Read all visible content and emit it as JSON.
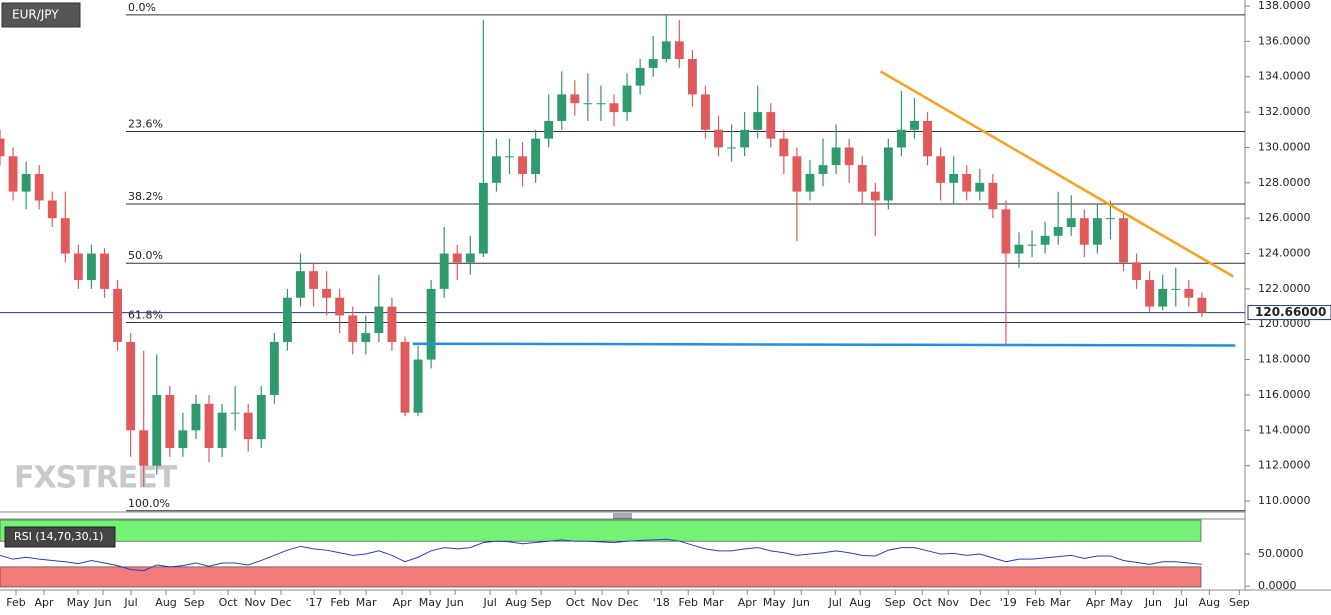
{
  "chart_data": {
    "type": "candlestick",
    "title": "EUR/JPY",
    "watermark": "FXSTREET",
    "x": [
      0,
      2,
      4,
      6,
      8,
      10,
      12,
      14,
      16,
      18,
      20,
      22,
      24,
      26,
      28,
      30,
      32,
      34,
      36,
      38,
      40,
      42,
      44,
      46,
      48,
      50,
      52,
      54,
      56,
      58,
      60,
      62,
      64,
      66,
      68,
      70,
      72,
      74,
      76,
      78,
      80,
      82,
      84,
      86,
      88,
      90,
      92,
      94,
      96,
      98,
      100,
      102,
      104,
      106,
      108,
      110,
      112,
      114,
      116,
      118,
      120,
      122,
      124,
      126,
      128,
      130,
      132,
      134,
      136,
      138,
      140,
      142,
      144,
      146,
      148,
      150,
      152,
      154,
      156,
      158,
      160,
      162,
      164,
      166,
      168,
      170,
      172,
      174,
      176,
      178,
      180,
      182,
      184
    ],
    "open": [
      130.5,
      129.5,
      127.5,
      128.5,
      127,
      126,
      124,
      122.5,
      124,
      122,
      119,
      114,
      112,
      116,
      113,
      114,
      115.5,
      113,
      115,
      115,
      113.5,
      116,
      119,
      121.5,
      123,
      122,
      121.5,
      120.5,
      119,
      119.5,
      121,
      119,
      115,
      118,
      122,
      124,
      123.5,
      124,
      128,
      129.5,
      129.5,
      128.5,
      130.5,
      131.5,
      133,
      132.5,
      132.5,
      132.5,
      132,
      133.5,
      134.5,
      135,
      136,
      135,
      133,
      131,
      130,
      130,
      131,
      132,
      130.5,
      129.5,
      127.5,
      128.5,
      129,
      130,
      129,
      127.5,
      127,
      130,
      131,
      131.5,
      129.5,
      128,
      128.5,
      127.5,
      128,
      126.5,
      124,
      124.5,
      124.5,
      125,
      125.5,
      126,
      124.5,
      126,
      126,
      123.5,
      122.5,
      121,
      122,
      122,
      121.5
    ],
    "high": [
      131,
      130,
      129.2,
      129,
      127.5,
      127.5,
      124.5,
      124.5,
      124.3,
      122.5,
      119.5,
      118.5,
      118.3,
      116.5,
      115,
      116,
      116,
      115.5,
      116.5,
      115.5,
      116.5,
      119.5,
      122,
      124,
      123.5,
      123,
      122,
      121,
      120.5,
      122.8,
      121.5,
      119.3,
      118.8,
      122.5,
      125.5,
      124.5,
      125,
      137.2,
      130.5,
      130.5,
      130.3,
      131,
      133,
      134.3,
      133.8,
      134.2,
      133.5,
      133,
      134.2,
      135,
      136.3,
      137.5,
      137.2,
      135.5,
      133.5,
      131.8,
      131.3,
      132,
      133.5,
      132.5,
      131,
      130,
      129.3,
      130.5,
      131.3,
      130.5,
      129.5,
      128,
      130.5,
      133.2,
      132.8,
      132,
      130,
      129.5,
      129,
      128.8,
      128.5,
      127,
      125.2,
      125.3,
      125.8,
      127.5,
      127.3,
      126.5,
      126.8,
      127,
      126.3,
      124,
      123,
      122.8,
      123.2,
      122.5,
      121.8
    ],
    "low": [
      129,
      127,
      126.5,
      126.5,
      125.5,
      123.5,
      122,
      122,
      121.5,
      118.5,
      112.5,
      110.8,
      111.5,
      112.5,
      112.5,
      113.5,
      112.2,
      112.5,
      114,
      112.8,
      113,
      115.5,
      118.5,
      121,
      121,
      120.5,
      119.5,
      118.3,
      118.3,
      119,
      118.5,
      114.8,
      114.8,
      117.5,
      121.5,
      122.5,
      122.8,
      123.8,
      127.5,
      128.5,
      127.8,
      128,
      130,
      131,
      131.8,
      131.5,
      131.5,
      131.2,
      131.5,
      133,
      134,
      134.8,
      134.5,
      132.3,
      130.5,
      129.5,
      129.2,
      129.5,
      130.5,
      130,
      128.5,
      124.7,
      127,
      127.8,
      128.5,
      128,
      126.8,
      125,
      126.5,
      129.5,
      130.5,
      129,
      127,
      126.8,
      127,
      127,
      126,
      118.9,
      123.2,
      123.8,
      124,
      124.5,
      125,
      123.8,
      124,
      124.8,
      123,
      122,
      120.7,
      120.8,
      121,
      121,
      120.4
    ],
    "close": [
      129.5,
      127.5,
      128.5,
      127,
      126,
      124,
      122.5,
      124,
      122,
      119,
      114,
      112,
      116,
      113,
      114,
      115.5,
      113,
      115,
      115,
      113.5,
      116,
      119,
      121.5,
      123,
      122,
      121.5,
      120.5,
      119,
      119.5,
      121,
      119,
      115,
      118,
      122,
      124,
      123.5,
      124,
      128,
      129.5,
      129.5,
      128.5,
      130.5,
      131.5,
      133,
      132.5,
      132.5,
      132.5,
      132,
      133.5,
      134.5,
      135,
      136,
      135,
      133,
      131,
      130,
      130,
      131,
      132,
      130.5,
      129.5,
      127.5,
      128.5,
      129,
      130,
      129,
      127.5,
      127,
      130,
      131,
      131.5,
      129.5,
      128,
      128.5,
      127.5,
      128,
      126.5,
      124,
      124.5,
      124.5,
      125,
      125.5,
      126,
      124.5,
      126,
      126,
      123.5,
      122.5,
      121,
      122,
      122,
      121.5,
      120.66
    ],
    "up_color": "#2f9a6d",
    "down_color": "#e05a5c",
    "xlim": [
      0,
      190.6
    ],
    "xticks": [
      {
        "value": 2.45,
        "label": "Feb"
      },
      {
        "value": 6.74,
        "label": "Apr"
      },
      {
        "value": 11.94,
        "label": "May"
      },
      {
        "value": 15.77,
        "label": "Jun"
      },
      {
        "value": 20.06,
        "label": "Jul"
      },
      {
        "value": 25.42,
        "label": "Aug"
      },
      {
        "value": 29.71,
        "label": "Sep"
      },
      {
        "value": 34.92,
        "label": "Oct"
      },
      {
        "value": 39.05,
        "label": "Nov"
      },
      {
        "value": 43.03,
        "label": "Dec"
      },
      {
        "value": 48.09,
        "label": "'17"
      },
      {
        "value": 52.07,
        "label": "Feb"
      },
      {
        "value": 56.05,
        "label": "Mar"
      },
      {
        "value": 61.56,
        "label": "Apr"
      },
      {
        "value": 65.85,
        "label": "May"
      },
      {
        "value": 69.68,
        "label": "Jun"
      },
      {
        "value": 75.04,
        "label": "Jul"
      },
      {
        "value": 79.02,
        "label": "Aug"
      },
      {
        "value": 82.85,
        "label": "Sep"
      },
      {
        "value": 88.06,
        "label": "Oct"
      },
      {
        "value": 92.19,
        "label": "Nov"
      },
      {
        "value": 96.17,
        "label": "Dec"
      },
      {
        "value": 101.23,
        "label": "'18"
      },
      {
        "value": 105.36,
        "label": "Feb"
      },
      {
        "value": 109.19,
        "label": "Mar"
      },
      {
        "value": 114.4,
        "label": "Apr"
      },
      {
        "value": 118.53,
        "label": "May"
      },
      {
        "value": 122.66,
        "label": "Jun"
      },
      {
        "value": 127.87,
        "label": "Jul"
      },
      {
        "value": 131.7,
        "label": "Aug"
      },
      {
        "value": 137.06,
        "label": "Sep"
      },
      {
        "value": 141.19,
        "label": "Oct"
      },
      {
        "value": 145.18,
        "label": "Nov"
      },
      {
        "value": 150.08,
        "label": "Dec"
      },
      {
        "value": 154.36,
        "label": "'19"
      },
      {
        "value": 158.5,
        "label": "Feb"
      },
      {
        "value": 162.33,
        "label": "Mar"
      },
      {
        "value": 167.69,
        "label": "Apr"
      },
      {
        "value": 171.67,
        "label": "May"
      },
      {
        "value": 176.57,
        "label": "Jun"
      },
      {
        "value": 180.86,
        "label": "Jul"
      },
      {
        "value": 185.15,
        "label": "Aug"
      },
      {
        "value": 189.74,
        "label": "Sep"
      }
    ],
    "ylim": [
      109.38,
      138.34
    ],
    "yticks": [
      {
        "value": 110,
        "label": "110.0000"
      },
      {
        "value": 112,
        "label": "112.0000"
      },
      {
        "value": 114,
        "label": "114.0000"
      },
      {
        "value": 116,
        "label": "116.0000"
      },
      {
        "value": 118,
        "label": "118.0000"
      },
      {
        "value": 120,
        "label": "120.0000"
      },
      {
        "value": 122,
        "label": "122.0000"
      },
      {
        "value": 124,
        "label": "124.0000"
      },
      {
        "value": 126,
        "label": "126.0000"
      },
      {
        "value": 128,
        "label": "128.0000"
      },
      {
        "value": 130,
        "label": "130.0000"
      },
      {
        "value": 132,
        "label": "132.0000"
      },
      {
        "value": 134,
        "label": "134.0000"
      },
      {
        "value": 136,
        "label": "136.0000"
      },
      {
        "value": 138,
        "label": "138.0000"
      }
    ],
    "last_price": {
      "value": 120.66,
      "label": "120.66000"
    },
    "fib_levels": [
      {
        "value": 137.5,
        "label": "0.0%"
      },
      {
        "value": 130.9,
        "label": "23.6%"
      },
      {
        "value": 126.8,
        "label": "38.2%"
      },
      {
        "value": 123.45,
        "label": "50.0%"
      },
      {
        "value": 120.1,
        "label": "61.8%"
      },
      {
        "value": 109.45,
        "label": "100.0%"
      }
    ],
    "trendlines": [
      {
        "color": "#ff9f1a",
        "x": [
          134.8,
          188.8
        ],
        "y": [
          134.3,
          122.7
        ]
      },
      {
        "color": "#1e90e8",
        "x": [
          63.2,
          189.1
        ],
        "y": [
          118.9,
          118.8
        ]
      }
    ],
    "rsi": {
      "title": "RSI (14,70,30,1)",
      "color": "#2a3fc0",
      "values": [
        48,
        42,
        45,
        42,
        40,
        38,
        35,
        40,
        36,
        32,
        26,
        24,
        33,
        30,
        32,
        36,
        31,
        36,
        36,
        33,
        40,
        48,
        56,
        62,
        58,
        56,
        52,
        48,
        50,
        55,
        48,
        38,
        45,
        55,
        60,
        58,
        60,
        68,
        70,
        69,
        66,
        68,
        70,
        72,
        70,
        70,
        69,
        68,
        70,
        71,
        72,
        73,
        70,
        64,
        58,
        55,
        55,
        58,
        60,
        55,
        52,
        48,
        50,
        52,
        55,
        52,
        48,
        47,
        56,
        60,
        60,
        55,
        50,
        51,
        48,
        50,
        44,
        38,
        42,
        42,
        44,
        46,
        48,
        43,
        47,
        47,
        40,
        37,
        34,
        38,
        38,
        36,
        34
      ],
      "ylim": [
        -6,
        103
      ],
      "yticks": [
        {
          "value": 0,
          "label": "0.0000"
        },
        {
          "value": 50,
          "label": "50.0000"
        }
      ],
      "overbought": 70,
      "oversold": 30,
      "overbought_color": "#74f274",
      "oversold_color": "#f47b7b"
    }
  }
}
